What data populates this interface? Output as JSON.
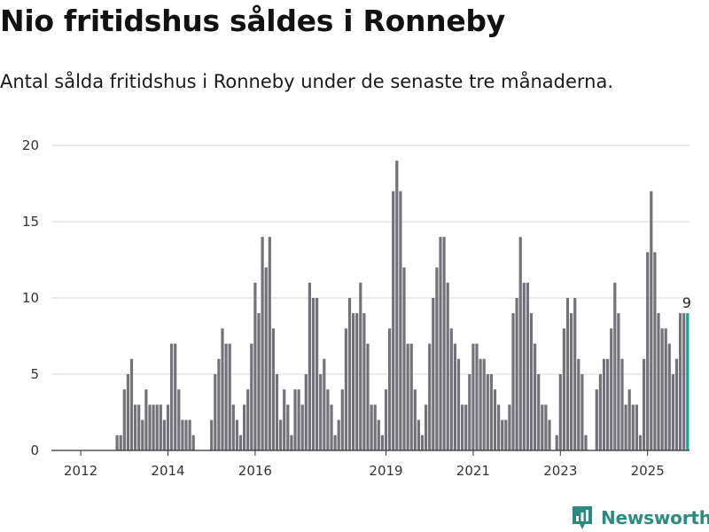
{
  "header": {
    "title": "Nio fritidshus såldes i Ronneby",
    "subtitle": "Antal sålda fritidshus i Ronneby under de senaste tre månaderna."
  },
  "brand": {
    "name": "Newsworthy"
  },
  "colors": {
    "bar": "#737278",
    "highlight": "#1aa195",
    "grid": "#d9d9d9",
    "axis": "#333333",
    "brand": "#2b8b80"
  },
  "chart_data": {
    "type": "bar",
    "title": "Nio fritidshus såldes i Ronneby",
    "subtitle": "Antal sålda fritidshus i Ronneby under de senaste tre månaderna.",
    "xlabel": "",
    "ylabel": "",
    "ylim": [
      0,
      20
    ],
    "yticks": [
      0,
      5,
      10,
      15,
      20
    ],
    "xticks": [
      "2012",
      "2014",
      "2016",
      "2019",
      "2021",
      "2023",
      "2025"
    ],
    "grid": true,
    "legend": "none",
    "series": [
      {
        "start": "2012-01",
        "frequency": "monthly",
        "values": [
          0,
          0,
          0,
          0,
          0,
          0,
          0,
          0,
          0,
          0,
          1,
          1,
          4,
          5,
          6,
          3,
          3,
          2,
          4,
          3,
          3,
          3,
          3,
          2,
          3,
          7,
          7,
          4,
          2,
          2,
          2,
          1,
          0,
          0,
          0,
          0,
          2,
          5,
          6,
          8,
          7,
          7,
          3,
          2,
          1,
          3,
          4,
          7,
          11,
          9,
          14,
          12,
          14,
          8,
          5,
          2,
          4,
          3,
          1,
          4,
          4,
          3,
          5,
          11,
          10,
          10,
          5,
          6,
          4,
          3,
          1,
          2,
          4,
          8,
          10,
          9,
          9,
          11,
          9,
          7,
          3,
          3,
          2,
          1,
          4,
          8,
          17,
          19,
          17,
          12,
          7,
          7,
          4,
          2,
          1,
          3,
          7,
          10,
          12,
          14,
          14,
          11,
          8,
          7,
          6,
          3,
          3,
          5,
          7,
          7,
          6,
          6,
          5,
          5,
          4,
          3,
          2,
          2,
          3,
          9,
          10,
          14,
          11,
          11,
          9,
          7,
          5,
          3,
          3,
          2,
          0,
          1,
          5,
          8,
          10,
          9,
          10,
          6,
          5,
          1,
          0,
          0,
          4,
          5,
          6,
          6,
          8,
          11,
          9,
          6,
          3,
          4,
          3,
          3,
          1,
          6,
          13,
          17,
          13,
          9,
          8,
          8,
          7,
          5,
          6,
          9,
          9,
          9
        ]
      }
    ],
    "annotations": [
      {
        "value": 9,
        "text": "9",
        "target": "last-bar"
      }
    ]
  }
}
